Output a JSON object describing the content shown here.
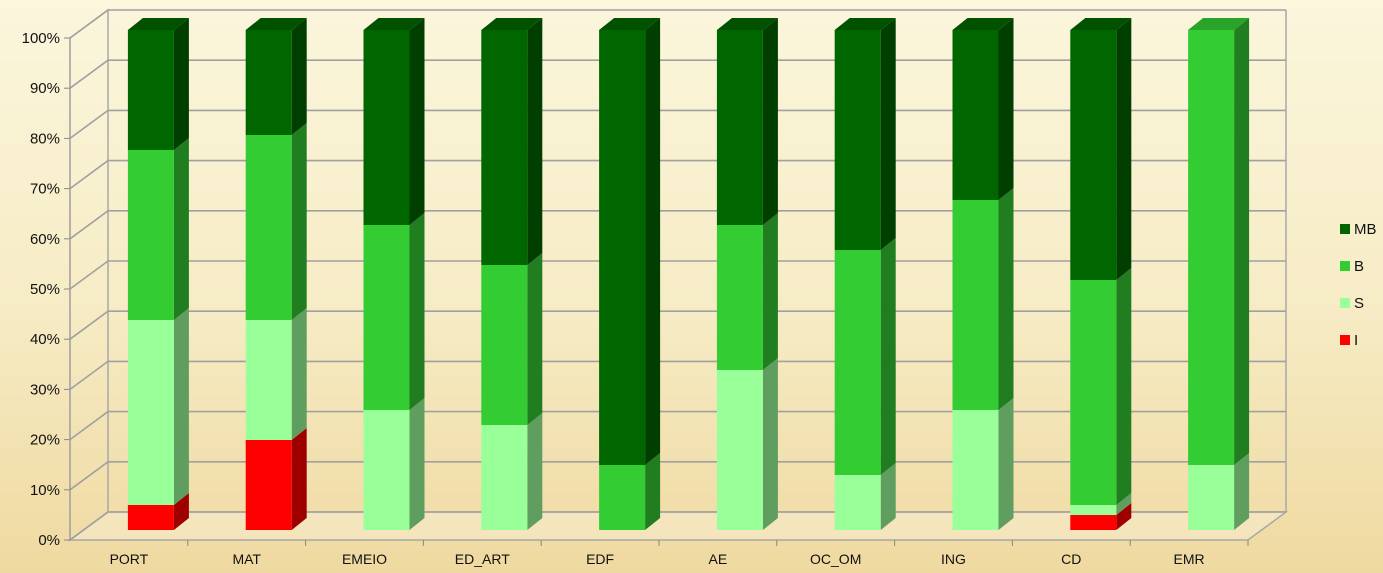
{
  "chart_data": {
    "type": "bar",
    "stacked": true,
    "percent": true,
    "three_d": true,
    "categories": [
      "PORT",
      "MAT",
      "EMEIO",
      "ED_ART",
      "EDF",
      "AE",
      "OC_OM",
      "ING",
      "CD",
      "EMR"
    ],
    "series": [
      {
        "name": "I",
        "values": [
          5,
          18,
          0,
          0,
          0,
          0,
          0,
          0,
          3,
          0
        ]
      },
      {
        "name": "S",
        "values": [
          37,
          24,
          24,
          21,
          0,
          32,
          11,
          24,
          2,
          13
        ]
      },
      {
        "name": "B",
        "values": [
          34,
          37,
          37,
          32,
          13,
          29,
          45,
          42,
          45,
          87
        ]
      },
      {
        "name": "MB",
        "values": [
          24,
          21,
          39,
          47,
          87,
          39,
          44,
          34,
          50,
          0
        ]
      }
    ],
    "y_ticks": [
      "0%",
      "10%",
      "20%",
      "30%",
      "40%",
      "50%",
      "60%",
      "70%",
      "80%",
      "90%",
      "100%"
    ],
    "ylim": [
      0,
      100
    ],
    "grid": true,
    "legend": {
      "position": "right",
      "order": [
        "MB",
        "B",
        "S",
        "I"
      ]
    },
    "colors": {
      "I": "#ff0000",
      "S": "#99ff99",
      "B": "#33cc33",
      "MB": "#006600"
    }
  }
}
